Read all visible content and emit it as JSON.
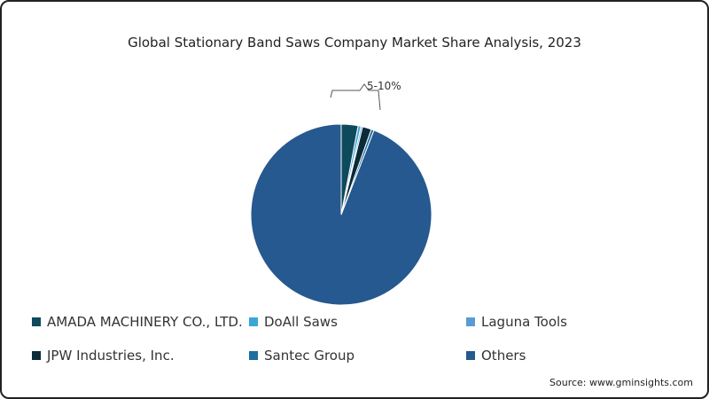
{
  "chart_data": {
    "type": "pie",
    "title": "Global Stationary Band Saws Company Market Share Analysis, 2023",
    "annotation": "5-10%",
    "slices": [
      {
        "name": "AMADA MACHINERY CO., LTD.",
        "value": 3.0,
        "color": "#0d4a5c"
      },
      {
        "name": "DoAll Saws",
        "value": 0.5,
        "color": "#3aa6d8"
      },
      {
        "name": "Laguna Tools",
        "value": 0.3,
        "color": "#5b9bd5"
      },
      {
        "name": "JPW Industries, Inc.",
        "value": 1.6,
        "color": "#0b2a3a"
      },
      {
        "name": "Santec Group",
        "value": 0.5,
        "color": "#1f6fa0"
      },
      {
        "name": "Others",
        "value": 94.1,
        "color": "#25598f"
      }
    ],
    "legend_placement": "bottom"
  },
  "source": "Source: www.gminsights.com"
}
